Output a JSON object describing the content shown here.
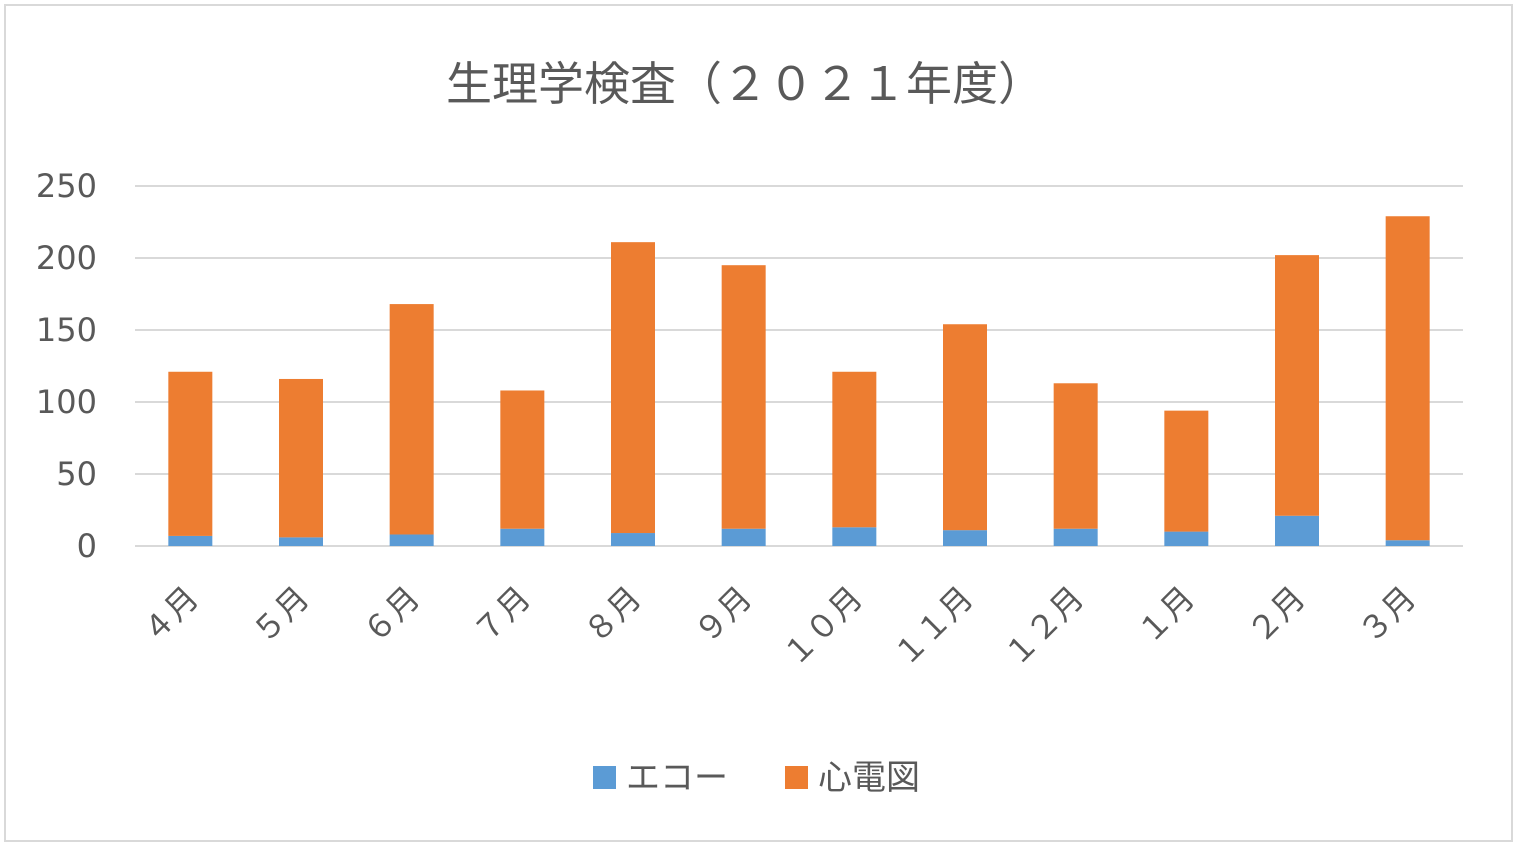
{
  "chart_data": {
    "type": "bar",
    "stacked": true,
    "title": "生理学検査（２０２１年度）",
    "xlabel": "",
    "ylabel": "",
    "ylim": [
      0,
      250
    ],
    "yticks": [
      "0",
      "50",
      "100",
      "150",
      "200",
      "250"
    ],
    "grid": true,
    "legend_position": "bottom",
    "categories": [
      "４月",
      "５月",
      "６月",
      "７月",
      "８月",
      "９月",
      "１０月",
      "１１月",
      "１２月",
      "１月",
      "２月",
      "３月"
    ],
    "series": [
      {
        "name": "エコー",
        "color": "#5b9bd5",
        "values": [
          7,
          6,
          8,
          12,
          9,
          12,
          13,
          11,
          12,
          10,
          21,
          4
        ]
      },
      {
        "name": "心電図",
        "color": "#ed7d31",
        "values": [
          114,
          110,
          160,
          96,
          202,
          183,
          108,
          143,
          101,
          84,
          181,
          225
        ]
      }
    ]
  }
}
